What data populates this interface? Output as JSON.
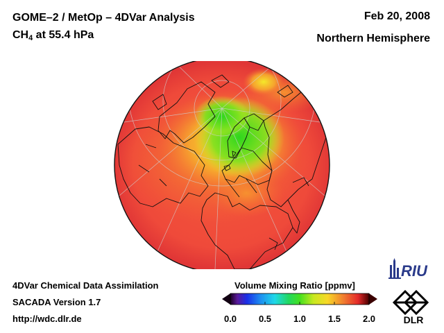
{
  "header": {
    "title_line1": "GOME–2 / MetOp – 4DVar Analysis",
    "species_prefix": "CH",
    "species_subscript": "4",
    "species_suffix": " at 55.4 hPa",
    "date": "Feb 20, 2008",
    "region": "Northern Hemisphere"
  },
  "footer": {
    "line1": "4DVar Chemical Data Assimilation",
    "line2": "SACADA Version 1.7",
    "line3": "http://wdc.dlr.de"
  },
  "colorbar": {
    "title": "Volume Mixing Ratio [ppmv]",
    "ticks": [
      "0.0",
      "0.5",
      "1.0",
      "1.5",
      "2.0"
    ],
    "range": [
      0.0,
      2.0
    ],
    "under_color": "#120012",
    "over_color": "#3a0000"
  },
  "logos": {
    "riu": "RIU",
    "dlr": "DLR"
  },
  "colors": {
    "field_low": "#33dd22",
    "field_mid": "#f2e428",
    "field_high": "#f23e3a",
    "coastline": "#111111",
    "grid": "#cccccc"
  }
}
